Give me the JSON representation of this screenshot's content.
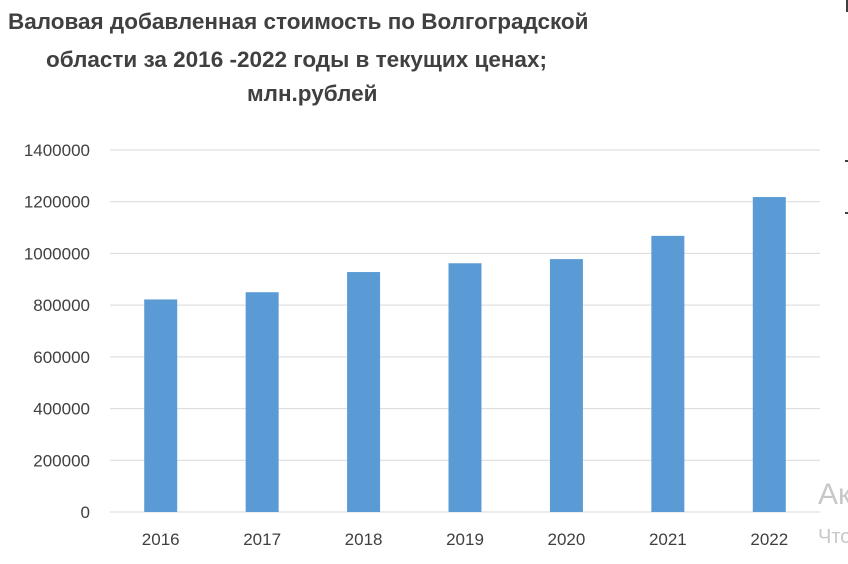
{
  "chart_data": {
    "type": "bar",
    "title_lines": [
      "Валовая добавленная стоимость по Волгоградской",
      "области за 2016 -2022 годы в текущих ценах;",
      "млн.рублей"
    ],
    "categories": [
      "2016",
      "2017",
      "2018",
      "2019",
      "2020",
      "2021",
      "2022"
    ],
    "values": [
      822000,
      850000,
      928000,
      962000,
      978000,
      1068000,
      1218000
    ],
    "ylim": [
      0,
      1400000
    ],
    "yticks": [
      "0",
      "200000",
      "400000",
      "600000",
      "800000",
      "1000000",
      "1200000",
      "1400000"
    ],
    "grid": true,
    "legend": "none",
    "bar_color": "#5b9bd5",
    "grid_color": "#d9d9d9"
  },
  "watermark": {
    "line1": "Ак",
    "line2": "Что"
  }
}
